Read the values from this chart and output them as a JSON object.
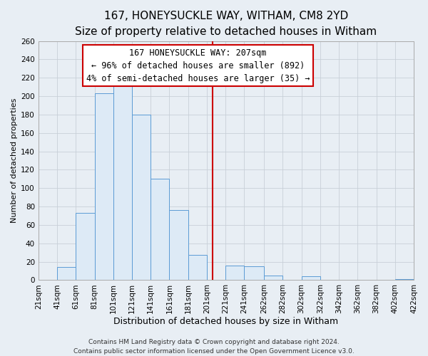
{
  "title": "167, HONEYSUCKLE WAY, WITHAM, CM8 2YD",
  "subtitle": "Size of property relative to detached houses in Witham",
  "xlabel": "Distribution of detached houses by size in Witham",
  "ylabel": "Number of detached properties",
  "bar_edges": [
    21,
    41,
    61,
    81,
    101,
    121,
    141,
    161,
    181,
    201,
    221,
    241,
    262,
    282,
    302,
    322,
    342,
    362,
    382,
    402,
    422
  ],
  "bar_heights": [
    0,
    14,
    73,
    203,
    211,
    180,
    110,
    76,
    27,
    0,
    16,
    15,
    5,
    0,
    4,
    0,
    0,
    0,
    0,
    1
  ],
  "bar_color": "#ddeaf6",
  "bar_edge_color": "#5b9bd5",
  "reference_line_x": 207,
  "reference_line_color": "#cc0000",
  "annotation_title": "167 HONEYSUCKLE WAY: 207sqm",
  "annotation_line1": "← 96% of detached houses are smaller (892)",
  "annotation_line2": "4% of semi-detached houses are larger (35) →",
  "annotation_box_color": "#ffffff",
  "annotation_box_edge_color": "#cc0000",
  "ylim": [
    0,
    260
  ],
  "xlim": [
    21,
    422
  ],
  "tick_labels": [
    "21sqm",
    "41sqm",
    "61sqm",
    "81sqm",
    "101sqm",
    "121sqm",
    "141sqm",
    "161sqm",
    "181sqm",
    "201sqm",
    "221sqm",
    "241sqm",
    "262sqm",
    "282sqm",
    "302sqm",
    "322sqm",
    "342sqm",
    "362sqm",
    "382sqm",
    "402sqm",
    "422sqm"
  ],
  "footer1": "Contains HM Land Registry data © Crown copyright and database right 2024.",
  "footer2": "Contains public sector information licensed under the Open Government Licence v3.0.",
  "grid_color": "#c8d0d8",
  "background_color": "#e8eef4",
  "plot_bg_color": "#e8eef4",
  "title_fontsize": 11,
  "subtitle_fontsize": 10,
  "xlabel_fontsize": 9,
  "ylabel_fontsize": 8,
  "tick_fontsize": 7.5,
  "footer_fontsize": 6.5,
  "annotation_fontsize": 8.5
}
